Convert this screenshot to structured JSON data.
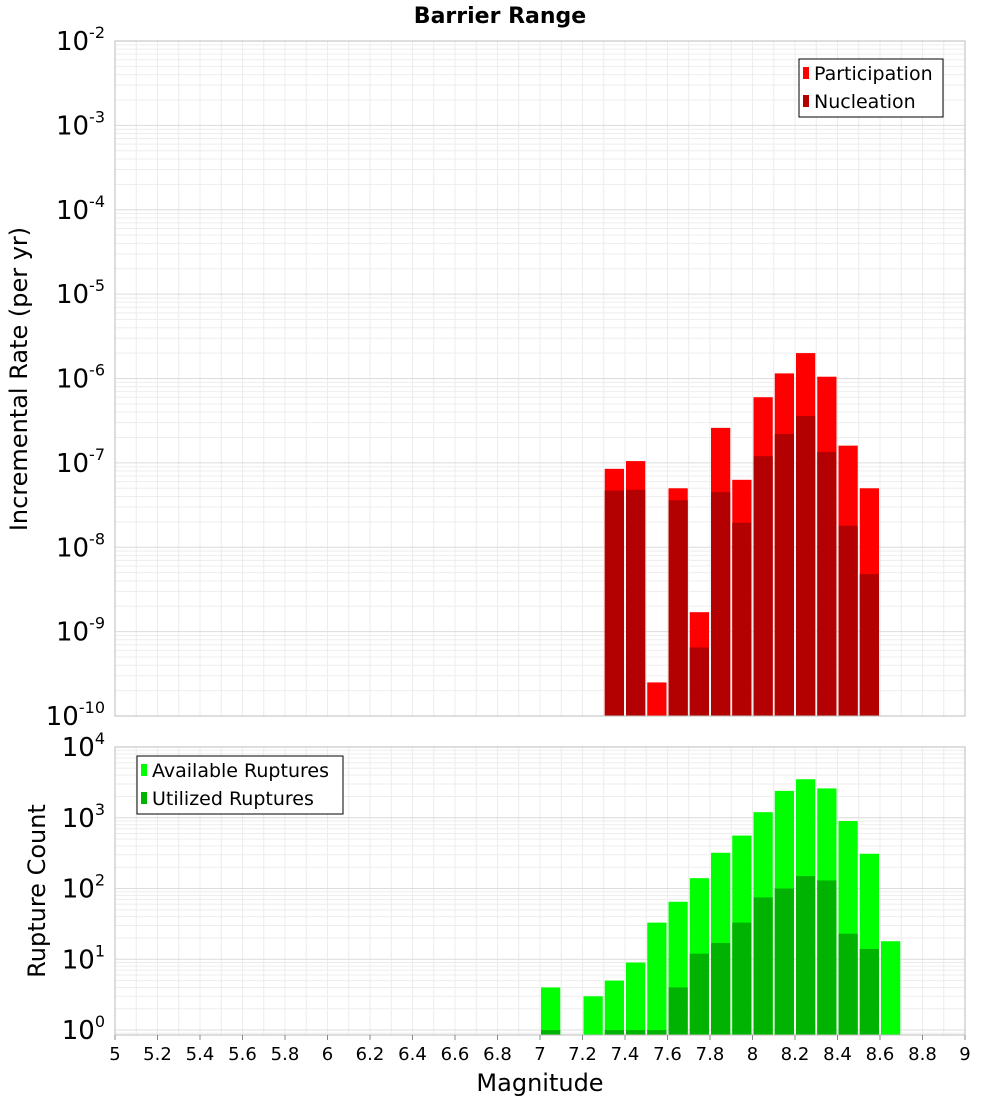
{
  "chart_data": [
    {
      "type": "bar",
      "title": "Barrier Range",
      "xlabel": "Magnitude",
      "ylabel": "Incremental Rate (per yr)",
      "yscale": "log",
      "ylim_exp": [
        -10,
        -2
      ],
      "xlim": [
        5,
        9
      ],
      "ytick_base": "10",
      "ytick_exponents": [
        "-10",
        "-9",
        "-8",
        "-7",
        "-6",
        "-5",
        "-4",
        "-3",
        "-2"
      ],
      "legend": {
        "position": "top-right",
        "entries": [
          "Participation",
          "Nucleation"
        ]
      },
      "bin_width": 0.1,
      "series": [
        {
          "name": "Participation",
          "color": "#ff0000",
          "x": [
            7.35,
            7.45,
            7.55,
            7.65,
            7.75,
            7.85,
            7.95,
            8.05,
            8.15,
            8.25,
            8.35,
            8.45,
            8.55
          ],
          "values": [
            8.5e-08,
            1.05e-07,
            2.5e-10,
            5e-08,
            1.7e-09,
            2.6e-07,
            6.3e-08,
            6e-07,
            1.15e-06,
            2e-06,
            1.05e-06,
            1.6e-07,
            5e-08
          ]
        },
        {
          "name": "Nucleation",
          "color": "#b30000",
          "x": [
            7.35,
            7.45,
            7.65,
            7.75,
            7.85,
            7.95,
            8.05,
            8.15,
            8.25,
            8.35,
            8.45,
            8.55
          ],
          "values": [
            4.7e-08,
            4.8e-08,
            3.6e-08,
            6.5e-10,
            4.5e-08,
            1.95e-08,
            1.2e-07,
            2.2e-07,
            3.6e-07,
            1.35e-07,
            1.8e-08,
            4.8e-09
          ]
        }
      ]
    },
    {
      "type": "bar",
      "title": "",
      "xlabel": "Magnitude",
      "ylabel": "Rupture Count",
      "yscale": "log",
      "ylim_exp": [
        -0.07,
        4
      ],
      "xlim": [
        5,
        9
      ],
      "ytick_base": "10",
      "ytick_exponents": [
        "0",
        "1",
        "2",
        "3",
        "4"
      ],
      "xtick_labels": [
        "5",
        "5.2",
        "5.4",
        "5.6",
        "5.8",
        "6",
        "6.2",
        "6.4",
        "6.6",
        "6.8",
        "7",
        "7.2",
        "7.4",
        "7.6",
        "7.8",
        "8",
        "8.2",
        "8.4",
        "8.6",
        "8.8",
        "9"
      ],
      "legend": {
        "position": "top-left",
        "entries": [
          "Available Ruptures",
          "Utilized Ruptures"
        ]
      },
      "bin_width": 0.1,
      "series": [
        {
          "name": "Available Ruptures",
          "color": "#00ff00",
          "x": [
            7.05,
            7.25,
            7.35,
            7.45,
            7.55,
            7.65,
            7.75,
            7.85,
            7.95,
            8.05,
            8.15,
            8.25,
            8.35,
            8.45,
            8.55,
            8.65
          ],
          "values": [
            4,
            3,
            5,
            9,
            33,
            65,
            140,
            320,
            560,
            1200,
            2400,
            3500,
            2600,
            900,
            310,
            18
          ]
        },
        {
          "name": "Utilized Ruptures",
          "color": "#00b300",
          "x": [
            7.05,
            7.35,
            7.45,
            7.55,
            7.65,
            7.75,
            7.85,
            7.95,
            8.05,
            8.15,
            8.25,
            8.35,
            8.45,
            8.55
          ],
          "values": [
            1,
            1,
            1,
            1,
            4,
            12,
            17,
            33,
            75,
            100,
            150,
            130,
            23,
            14
          ]
        }
      ]
    }
  ]
}
